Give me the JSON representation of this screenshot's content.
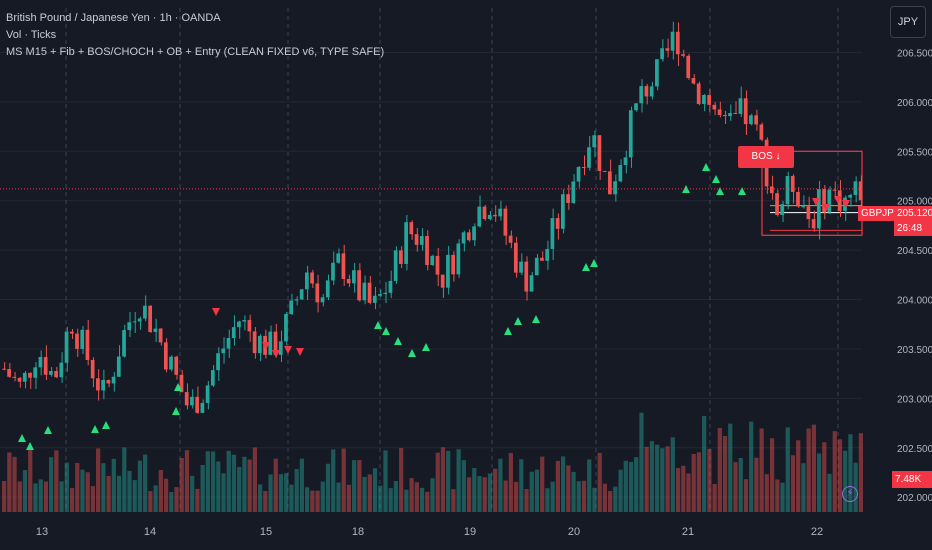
{
  "legend": {
    "symbol_line": "British Pound / Japanese Yen · 1h · OANDA",
    "volume_line": "Vol · Ticks",
    "indicator_line": "MS M15 + Fib + BOS/CHOCH + OB + Entry (CLEAN FIXED v6, TYPE SAFE)"
  },
  "currency_button": "JPY",
  "colors": {
    "up": "#26a69a",
    "down": "#ef5350",
    "bg": "#161a25",
    "bull_signal": "#26e07f",
    "bear_signal": "#f23645",
    "bos": "#f23645"
  },
  "tags": {
    "symbol": "GBPJPY",
    "price": "205.120",
    "countdown": "26:48",
    "volume": "7.48K",
    "bos": "BOS ↓"
  },
  "chart_data": {
    "type": "candlestick",
    "title": "British Pound / Japanese Yen · 1h · OANDA",
    "x_tick_labels": [
      "13",
      "14",
      "15",
      "18",
      "19",
      "20",
      "21",
      "22"
    ],
    "y_tick_labels": [
      "202.000",
      "202.500",
      "203.000",
      "203.500",
      "204.000",
      "204.500",
      "205.000",
      "205.500",
      "206.000",
      "206.500"
    ],
    "ylim": [
      201.85,
      206.95
    ],
    "last_price": 205.12,
    "last_volume": "7.48K",
    "close_path": [
      203.3,
      203.1,
      203.5,
      203.2,
      203.8,
      203.4,
      203.0,
      203.6,
      204.0,
      203.7,
      203.3,
      202.9,
      203.1,
      203.5,
      203.8,
      203.6,
      203.5,
      203.8,
      204.3,
      204.0,
      204.4,
      204.1,
      203.9,
      204.2,
      204.7,
      204.6,
      204.2,
      204.5,
      204.9,
      205.0,
      204.6,
      204.2,
      204.4,
      204.8,
      205.3,
      205.7,
      205.1,
      205.6,
      206.1,
      206.3,
      206.7,
      206.2,
      206.0,
      205.7,
      205.9,
      205.6,
      204.9,
      205.2,
      204.8,
      205.1,
      205.0,
      205.12
    ],
    "annotations": [
      "BOS ↓"
    ]
  }
}
